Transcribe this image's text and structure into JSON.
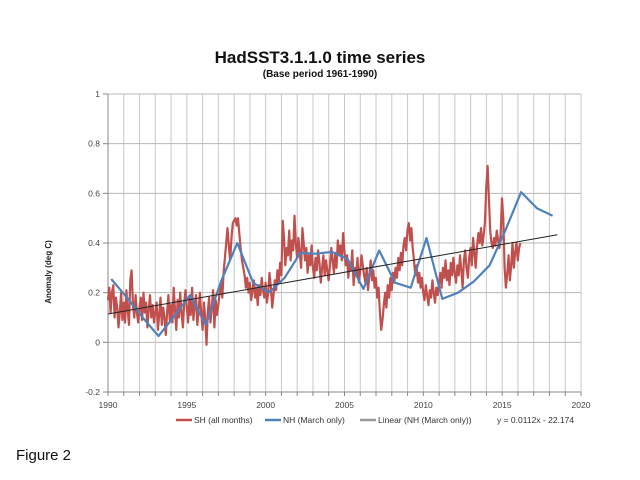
{
  "page": {
    "figure_label": "Figure 2"
  },
  "chart_data": {
    "type": "line",
    "title": "HadSST3.1.1.0 time series",
    "subtitle": "(Base period 1961-1990)",
    "xlabel": "",
    "ylabel": "Anomaly (deg C)",
    "xlim": [
      1990,
      2020
    ],
    "ylim": [
      -0.2,
      1
    ],
    "x_ticks": [
      1990,
      1995,
      2000,
      2005,
      2010,
      2015,
      2020
    ],
    "x_tick_labels": [
      "1990",
      "1995",
      "2000",
      "2005",
      "2010",
      "2015",
      "2020"
    ],
    "y_ticks": [
      -0.2,
      0,
      0.2,
      0.4,
      0.6,
      0.8,
      1
    ],
    "y_tick_labels": [
      "-0.2",
      "0",
      "0.2",
      "0.4",
      "0.6",
      "0.8",
      "1"
    ],
    "grid": true,
    "legend_position": "bottom",
    "series": [
      {
        "name": "SH (all months)",
        "color": "#c0504d",
        "start_year": 1990.0,
        "step_years": 0.0833,
        "values": [
          0.17,
          0.22,
          0.12,
          0.2,
          0.23,
          0.1,
          0.18,
          0.14,
          0.06,
          0.12,
          0.2,
          0.09,
          0.16,
          0.08,
          0.21,
          0.13,
          0.07,
          0.25,
          0.29,
          0.15,
          0.1,
          0.19,
          0.12,
          0.08,
          0.14,
          0.18,
          0.09,
          0.2,
          0.12,
          0.16,
          0.06,
          0.13,
          0.19,
          0.1,
          0.15,
          0.08,
          0.12,
          0.16,
          0.05,
          0.11,
          0.18,
          0.07,
          0.14,
          0.1,
          0.03,
          0.12,
          0.19,
          0.09,
          0.15,
          0.08,
          0.22,
          0.13,
          0.05,
          0.17,
          0.1,
          0.2,
          0.12,
          0.06,
          0.16,
          0.21,
          0.14,
          0.08,
          0.18,
          0.11,
          0.22,
          0.09,
          0.15,
          0.19,
          0.07,
          0.13,
          0.2,
          0.12,
          0.05,
          0.16,
          0.1,
          -0.01,
          0.12,
          0.18,
          0.08,
          0.14,
          0.21,
          0.06,
          0.17,
          0.11,
          0.15,
          0.2,
          0.24,
          0.18,
          0.28,
          0.34,
          0.4,
          0.46,
          0.39,
          0.33,
          0.42,
          0.48,
          0.49,
          0.5,
          0.47,
          0.5,
          0.44,
          0.38,
          0.33,
          0.3,
          0.27,
          0.22,
          0.26,
          0.2,
          0.24,
          0.17,
          0.21,
          0.25,
          0.18,
          0.22,
          0.15,
          0.23,
          0.19,
          0.26,
          0.21,
          0.18,
          0.24,
          0.16,
          0.2,
          0.28,
          0.22,
          0.14,
          0.19,
          0.25,
          0.21,
          0.29,
          0.24,
          0.32,
          0.27,
          0.49,
          0.42,
          0.31,
          0.38,
          0.35,
          0.45,
          0.33,
          0.41,
          0.37,
          0.51,
          0.4,
          0.34,
          0.42,
          0.36,
          0.3,
          0.46,
          0.4,
          0.33,
          0.38,
          0.28,
          0.35,
          0.31,
          0.39,
          0.3,
          0.26,
          0.34,
          0.29,
          0.37,
          0.32,
          0.24,
          0.3,
          0.35,
          0.27,
          0.33,
          0.29,
          0.25,
          0.31,
          0.38,
          0.33,
          0.28,
          0.36,
          0.3,
          0.41,
          0.35,
          0.39,
          0.33,
          0.44,
          0.37,
          0.31,
          0.35,
          0.26,
          0.32,
          0.29,
          0.37,
          0.23,
          0.3,
          0.27,
          0.34,
          0.24,
          0.29,
          0.35,
          0.31,
          0.27,
          0.24,
          0.3,
          0.21,
          0.27,
          0.33,
          0.25,
          0.29,
          0.22,
          0.26,
          0.18,
          0.22,
          0.12,
          0.05,
          0.09,
          0.15,
          0.2,
          0.14,
          0.23,
          0.18,
          0.26,
          0.21,
          0.28,
          0.24,
          0.3,
          0.26,
          0.34,
          0.29,
          0.36,
          0.31,
          0.39,
          0.42,
          0.37,
          0.45,
          0.48,
          0.41,
          0.46,
          0.38,
          0.33,
          0.27,
          0.31,
          0.24,
          0.28,
          0.22,
          0.26,
          0.2,
          0.17,
          0.23,
          0.19,
          0.15,
          0.21,
          0.18,
          0.25,
          0.2,
          0.16,
          0.22,
          0.19,
          0.24,
          0.28,
          0.22,
          0.3,
          0.26,
          0.33,
          0.25,
          0.29,
          0.23,
          0.32,
          0.27,
          0.34,
          0.28,
          0.24,
          0.31,
          0.27,
          0.35,
          0.29,
          0.22,
          0.33,
          0.37,
          0.3,
          0.26,
          0.34,
          0.38,
          0.31,
          0.42,
          0.36,
          0.3,
          0.39,
          0.44,
          0.4,
          0.46,
          0.39,
          0.43,
          0.48,
          0.62,
          0.71,
          0.58,
          0.45,
          0.4,
          0.38,
          0.42,
          0.39,
          0.45,
          0.41,
          0.38,
          0.44,
          0.58,
          0.5,
          0.3,
          0.22,
          0.28,
          0.35,
          0.25,
          0.31,
          0.4,
          0.3,
          0.36,
          0.4,
          0.33,
          0.38,
          0.4
        ]
      },
      {
        "name": "NH (March only)",
        "color": "#4f81bd",
        "x": [
          1990.2,
          1991.2,
          1992.2,
          1993.2,
          1994.2,
          1995.2,
          1996.2,
          1997.2,
          1998.2,
          1999.2,
          2000.2,
          2001.2,
          2002.2,
          2003.2,
          2004.2,
          2005.2,
          2006.2,
          2007.2,
          2008.2,
          2009.2,
          2010.2,
          2011.2,
          2012.2,
          2013.2,
          2014.2,
          2015.2,
          2016.2,
          2017.2,
          2018.2
        ],
        "values": [
          0.255,
          0.18,
          0.1,
          0.025,
          0.105,
          0.19,
          0.07,
          0.25,
          0.4,
          0.24,
          0.2,
          0.26,
          0.36,
          0.357,
          0.364,
          0.335,
          0.215,
          0.37,
          0.24,
          0.22,
          0.42,
          0.175,
          0.2,
          0.245,
          0.31,
          0.45,
          0.605,
          0.54,
          0.51
        ]
      },
      {
        "name": "Linear (NH (March only))",
        "color": "#222222",
        "type": "trendline",
        "slope": 0.0112,
        "intercept": -22.174,
        "x_range": [
          1990.0,
          2018.5
        ]
      }
    ],
    "annotations": [
      "y = 0.0112x - 22.174"
    ]
  }
}
